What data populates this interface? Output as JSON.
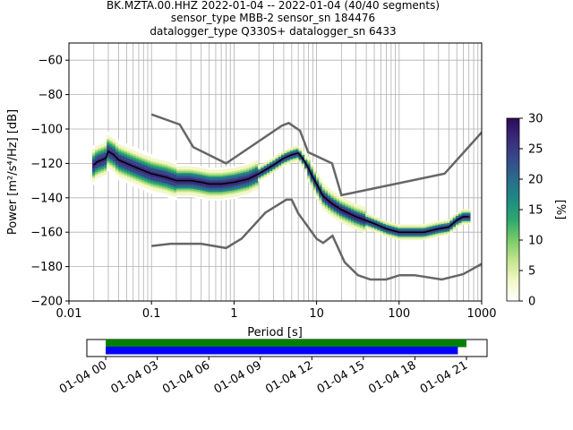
{
  "chart_data": [
    {
      "type": "heatmap",
      "title": [
        "BK.MZTA.00.HHZ   2022-01-04 -- 2022-01-04  (40/40 segments)",
        "sensor_type MBB-2 sensor_sn 184476",
        "datalogger_type Q330S+ datalogger_sn 6433"
      ],
      "xlabel": "Period [s]",
      "ylabel": "Power [m²/s⁴/Hz] [dB]",
      "xscale": "log",
      "xlim": [
        0.01,
        1000
      ],
      "ylim": [
        -200,
        -50
      ],
      "xticks": [
        0.01,
        0.1,
        1,
        10,
        100,
        1000
      ],
      "xtick_labels": [
        "0.01",
        "0.1",
        "1",
        "10",
        "100",
        "1000"
      ],
      "yticks": [
        -200,
        -180,
        -160,
        -140,
        -120,
        -100,
        -80,
        -60
      ],
      "ytick_labels": [
        "−200",
        "−180",
        "−160",
        "−140",
        "−120",
        "−100",
        "−80",
        "−60"
      ],
      "grid": true,
      "mean_curve": {
        "x": [
          0.02,
          0.022,
          0.025,
          0.028,
          0.03,
          0.035,
          0.04,
          0.05,
          0.07,
          0.1,
          0.15,
          0.2,
          0.3,
          0.4,
          0.5,
          0.7,
          1.0,
          1.5,
          2,
          3,
          4,
          5,
          6,
          7,
          8,
          9,
          10,
          12,
          15,
          20,
          30,
          50,
          70,
          100,
          150,
          200,
          300,
          400,
          500,
          600,
          700
        ],
        "y": [
          -121,
          -119,
          -118,
          -117,
          -113,
          -115,
          -118,
          -120,
          -123,
          -126,
          -128,
          -130,
          -130,
          -131,
          -132,
          -132,
          -131,
          -129,
          -126,
          -121,
          -117,
          -115,
          -114,
          -118,
          -123,
          -128,
          -132,
          -139,
          -143,
          -147,
          -151,
          -155,
          -158,
          -160,
          -160,
          -160,
          -158,
          -157,
          -153,
          -151,
          -151
        ]
      },
      "nhnm": {
        "x": [
          0.1,
          0.22,
          0.32,
          0.8,
          3.8,
          4.6,
          6.3,
          7.9,
          15.4,
          20,
          354.8,
          10000
        ],
        "y": [
          -91.5,
          -97.4,
          -110.5,
          -120,
          -98,
          -96.5,
          -101,
          -113.5,
          -120,
          -138.5,
          -126,
          -48.5
        ]
      },
      "nlnm": {
        "x": [
          0.1,
          0.17,
          0.4,
          0.8,
          1.24,
          2.4,
          4.3,
          5,
          6,
          10,
          12,
          15.6,
          21.9,
          31.6,
          45,
          70,
          101,
          154,
          328,
          600,
          10000
        ],
        "y": [
          -168,
          -166.7,
          -166.7,
          -169.2,
          -163.7,
          -148.6,
          -141.1,
          -141.1,
          -149,
          -163.8,
          -166.2,
          -162.1,
          -177.5,
          -185,
          -187.5,
          -187.5,
          -185,
          -185,
          -187.5,
          -184.4,
          -151.5
        ]
      },
      "colorbar": {
        "label": "[%]",
        "range": [
          0,
          30
        ],
        "ticks": [
          0,
          5,
          10,
          15,
          20,
          25,
          30
        ],
        "colormap": [
          "#ffffff",
          "#f3f7c7",
          "#c3e48d",
          "#79cb6a",
          "#2ea76e",
          "#1f8a83",
          "#2a6b8c",
          "#37498a",
          "#3a2a7a",
          "#2d0b5a"
        ]
      }
    },
    {
      "type": "timeline",
      "tick_labels": [
        "01-04 00",
        "01-04 03",
        "01-04 06",
        "01-04 09",
        "01-04 12",
        "01-04 15",
        "01-04 18",
        "01-04 21"
      ],
      "tick_hours": [
        0,
        3,
        6,
        9,
        12,
        15,
        18,
        21
      ],
      "xlim_hours": [
        -1.1,
        22.2
      ],
      "bars": [
        {
          "color": "#008000",
          "start_hour": 0,
          "end_hour": 21.0
        },
        {
          "color": "#0000ff",
          "start_hour": 0,
          "end_hour": 20.5
        }
      ]
    }
  ]
}
